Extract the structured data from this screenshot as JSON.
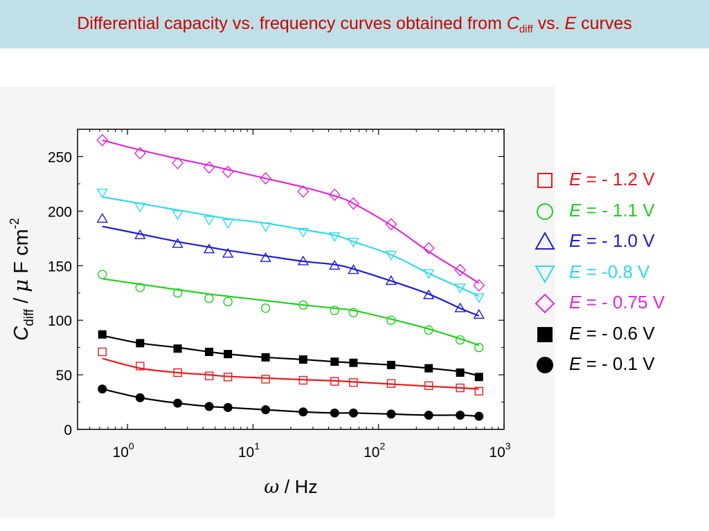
{
  "slide": {
    "title_pre": "Differential capacity vs. frequency curves obtained from ",
    "title_sym": "C",
    "title_sub": "diff",
    "title_mid": " vs. ",
    "title_var": "E",
    "title_post": " curves"
  },
  "chart_data": {
    "type": "scatter",
    "xscale": "log",
    "xlim": [
      0.4,
      1000
    ],
    "ylim": [
      0,
      275
    ],
    "xlabel": {
      "symbol": "ω",
      "text": " / Hz"
    },
    "ylabel": {
      "symbol": "C",
      "sub": "diff",
      "mid": " / ",
      "mu": "μ",
      "unit": " F cm",
      "sup": "-2"
    },
    "x_ticks": [
      {
        "value": 1,
        "base": "10",
        "exp": "0"
      },
      {
        "value": 10,
        "base": "10",
        "exp": "1"
      },
      {
        "value": 100,
        "base": "10",
        "exp": "2"
      },
      {
        "value": 1000,
        "base": "10",
        "exp": "3"
      }
    ],
    "y_ticks": [
      "0",
      "50",
      "100",
      "150",
      "200",
      "250"
    ],
    "grid": false,
    "legend_position": "right",
    "x": [
      0.63,
      1.26,
      2.51,
      4.47,
      6.31,
      12.6,
      25.1,
      44.7,
      63.1,
      126,
      251,
      447,
      631
    ],
    "series": [
      {
        "name": "- 1.2 V",
        "color": "#e8191e",
        "marker": "open-square",
        "values": [
          71,
          58,
          52,
          49,
          48,
          46,
          45,
          44,
          43,
          42,
          40,
          38,
          35
        ],
        "fit": [
          [
            0.63,
            65
          ],
          [
            1.26,
            56
          ],
          [
            2.51,
            52
          ],
          [
            4.47,
            50
          ],
          [
            6.31,
            48.5
          ],
          [
            12.6,
            47
          ],
          [
            25.1,
            45.5
          ],
          [
            44.7,
            44.5
          ],
          [
            63.1,
            43.5
          ],
          [
            126,
            41.5
          ],
          [
            251,
            39.5
          ],
          [
            447,
            38
          ],
          [
            631,
            37
          ]
        ]
      },
      {
        "name": "- 1.1 V",
        "color": "#1fd01f",
        "marker": "open-circle",
        "values": [
          142,
          130,
          125,
          120,
          117,
          111,
          114,
          109,
          107,
          100,
          91,
          82,
          75
        ],
        "fit": [
          [
            0.63,
            138
          ],
          [
            1.26,
            133
          ],
          [
            2.51,
            128
          ],
          [
            4.47,
            124
          ],
          [
            6.31,
            122
          ],
          [
            12.6,
            118
          ],
          [
            25.1,
            114
          ],
          [
            44.7,
            111
          ],
          [
            63.1,
            109
          ],
          [
            126,
            101
          ],
          [
            251,
            92
          ],
          [
            447,
            83
          ],
          [
            631,
            77
          ]
        ]
      },
      {
        "name": "- 1.0 V",
        "color": "#1b1bd6",
        "marker": "open-triangle-up",
        "values": [
          193,
          178,
          170,
          165,
          161,
          157,
          154,
          150,
          146,
          136,
          123,
          111,
          105
        ],
        "fit": [
          [
            0.63,
            186
          ],
          [
            1.26,
            179
          ],
          [
            2.51,
            172
          ],
          [
            4.47,
            167
          ],
          [
            6.31,
            164
          ],
          [
            12.6,
            159
          ],
          [
            25.1,
            154
          ],
          [
            44.7,
            151
          ],
          [
            63.1,
            147
          ],
          [
            126,
            136
          ],
          [
            251,
            124
          ],
          [
            447,
            111
          ],
          [
            631,
            104
          ]
        ]
      },
      {
        "name": "-0.8 V",
        "color": "#2fd9ee",
        "marker": "open-triangle-down",
        "values": [
          217,
          204,
          197,
          192,
          189,
          186,
          181,
          177,
          172,
          160,
          143,
          130,
          121
        ],
        "fit": [
          [
            0.63,
            213
          ],
          [
            1.26,
            207
          ],
          [
            2.51,
            201
          ],
          [
            4.47,
            196
          ],
          [
            6.31,
            193
          ],
          [
            12.6,
            189
          ],
          [
            25.1,
            183
          ],
          [
            44.7,
            178
          ],
          [
            63.1,
            172
          ],
          [
            126,
            160
          ],
          [
            251,
            143
          ],
          [
            447,
            130
          ],
          [
            631,
            122
          ]
        ]
      },
      {
        "name": "- 0.75 V",
        "color": "#e028d6",
        "marker": "open-diamond",
        "values": [
          265,
          253,
          244,
          240,
          236,
          230,
          218,
          215,
          207,
          188,
          166,
          146,
          132
        ],
        "fit": [
          [
            0.63,
            265
          ],
          [
            1.26,
            256
          ],
          [
            2.51,
            248
          ],
          [
            4.47,
            242
          ],
          [
            6.31,
            238
          ],
          [
            12.6,
            230
          ],
          [
            25.1,
            222
          ],
          [
            44.7,
            214
          ],
          [
            63.1,
            207
          ],
          [
            126,
            187
          ],
          [
            251,
            163
          ],
          [
            447,
            145
          ],
          [
            631,
            134
          ]
        ]
      },
      {
        "name": "- 0.6 V",
        "color": "#000000",
        "marker": "filled-square",
        "values": [
          87,
          79,
          74,
          71,
          69,
          66,
          64,
          62,
          61,
          59,
          56,
          52,
          48
        ],
        "fit": [
          [
            0.63,
            86
          ],
          [
            1.26,
            79
          ],
          [
            2.51,
            75
          ],
          [
            4.47,
            71
          ],
          [
            6.31,
            69
          ],
          [
            12.6,
            66
          ],
          [
            25.1,
            64
          ],
          [
            44.7,
            62
          ],
          [
            63.1,
            61
          ],
          [
            126,
            59
          ],
          [
            251,
            56
          ],
          [
            447,
            53
          ],
          [
            631,
            49
          ]
        ]
      },
      {
        "name": "- 0.1 V",
        "color": "#000000",
        "marker": "filled-circle",
        "values": [
          37,
          29,
          24,
          21,
          20,
          18,
          16,
          15,
          15,
          14,
          13,
          13,
          12
        ],
        "fit": [
          [
            0.63,
            37
          ],
          [
            1.26,
            29
          ],
          [
            2.51,
            24
          ],
          [
            4.47,
            21
          ],
          [
            6.31,
            20
          ],
          [
            12.6,
            18
          ],
          [
            25.1,
            16
          ],
          [
            44.7,
            15
          ],
          [
            63.1,
            15
          ],
          [
            126,
            14
          ],
          [
            251,
            13
          ],
          [
            447,
            13
          ],
          [
            631,
            12
          ]
        ]
      }
    ]
  },
  "legend": {
    "var": "E",
    "eq": " = ",
    "items": [
      {
        "value": "- 1.2 V",
        "color": "#e8191e",
        "marker": "open-square"
      },
      {
        "value": "- 1.1 V",
        "color": "#1fd01f",
        "marker": "open-circle"
      },
      {
        "value": "- 1.0 V",
        "color": "#1b1bd6",
        "marker": "open-triangle-up"
      },
      {
        "value": "-0.8 V",
        "color": "#2fd9ee",
        "marker": "open-triangle-down"
      },
      {
        "value": "- 0.75 V",
        "color": "#e028d6",
        "marker": "open-diamond"
      },
      {
        "value": "- 0.6 V",
        "color": "#000000",
        "marker": "filled-square"
      },
      {
        "value": "- 0.1 V",
        "color": "#000000",
        "marker": "filled-circle"
      }
    ]
  }
}
